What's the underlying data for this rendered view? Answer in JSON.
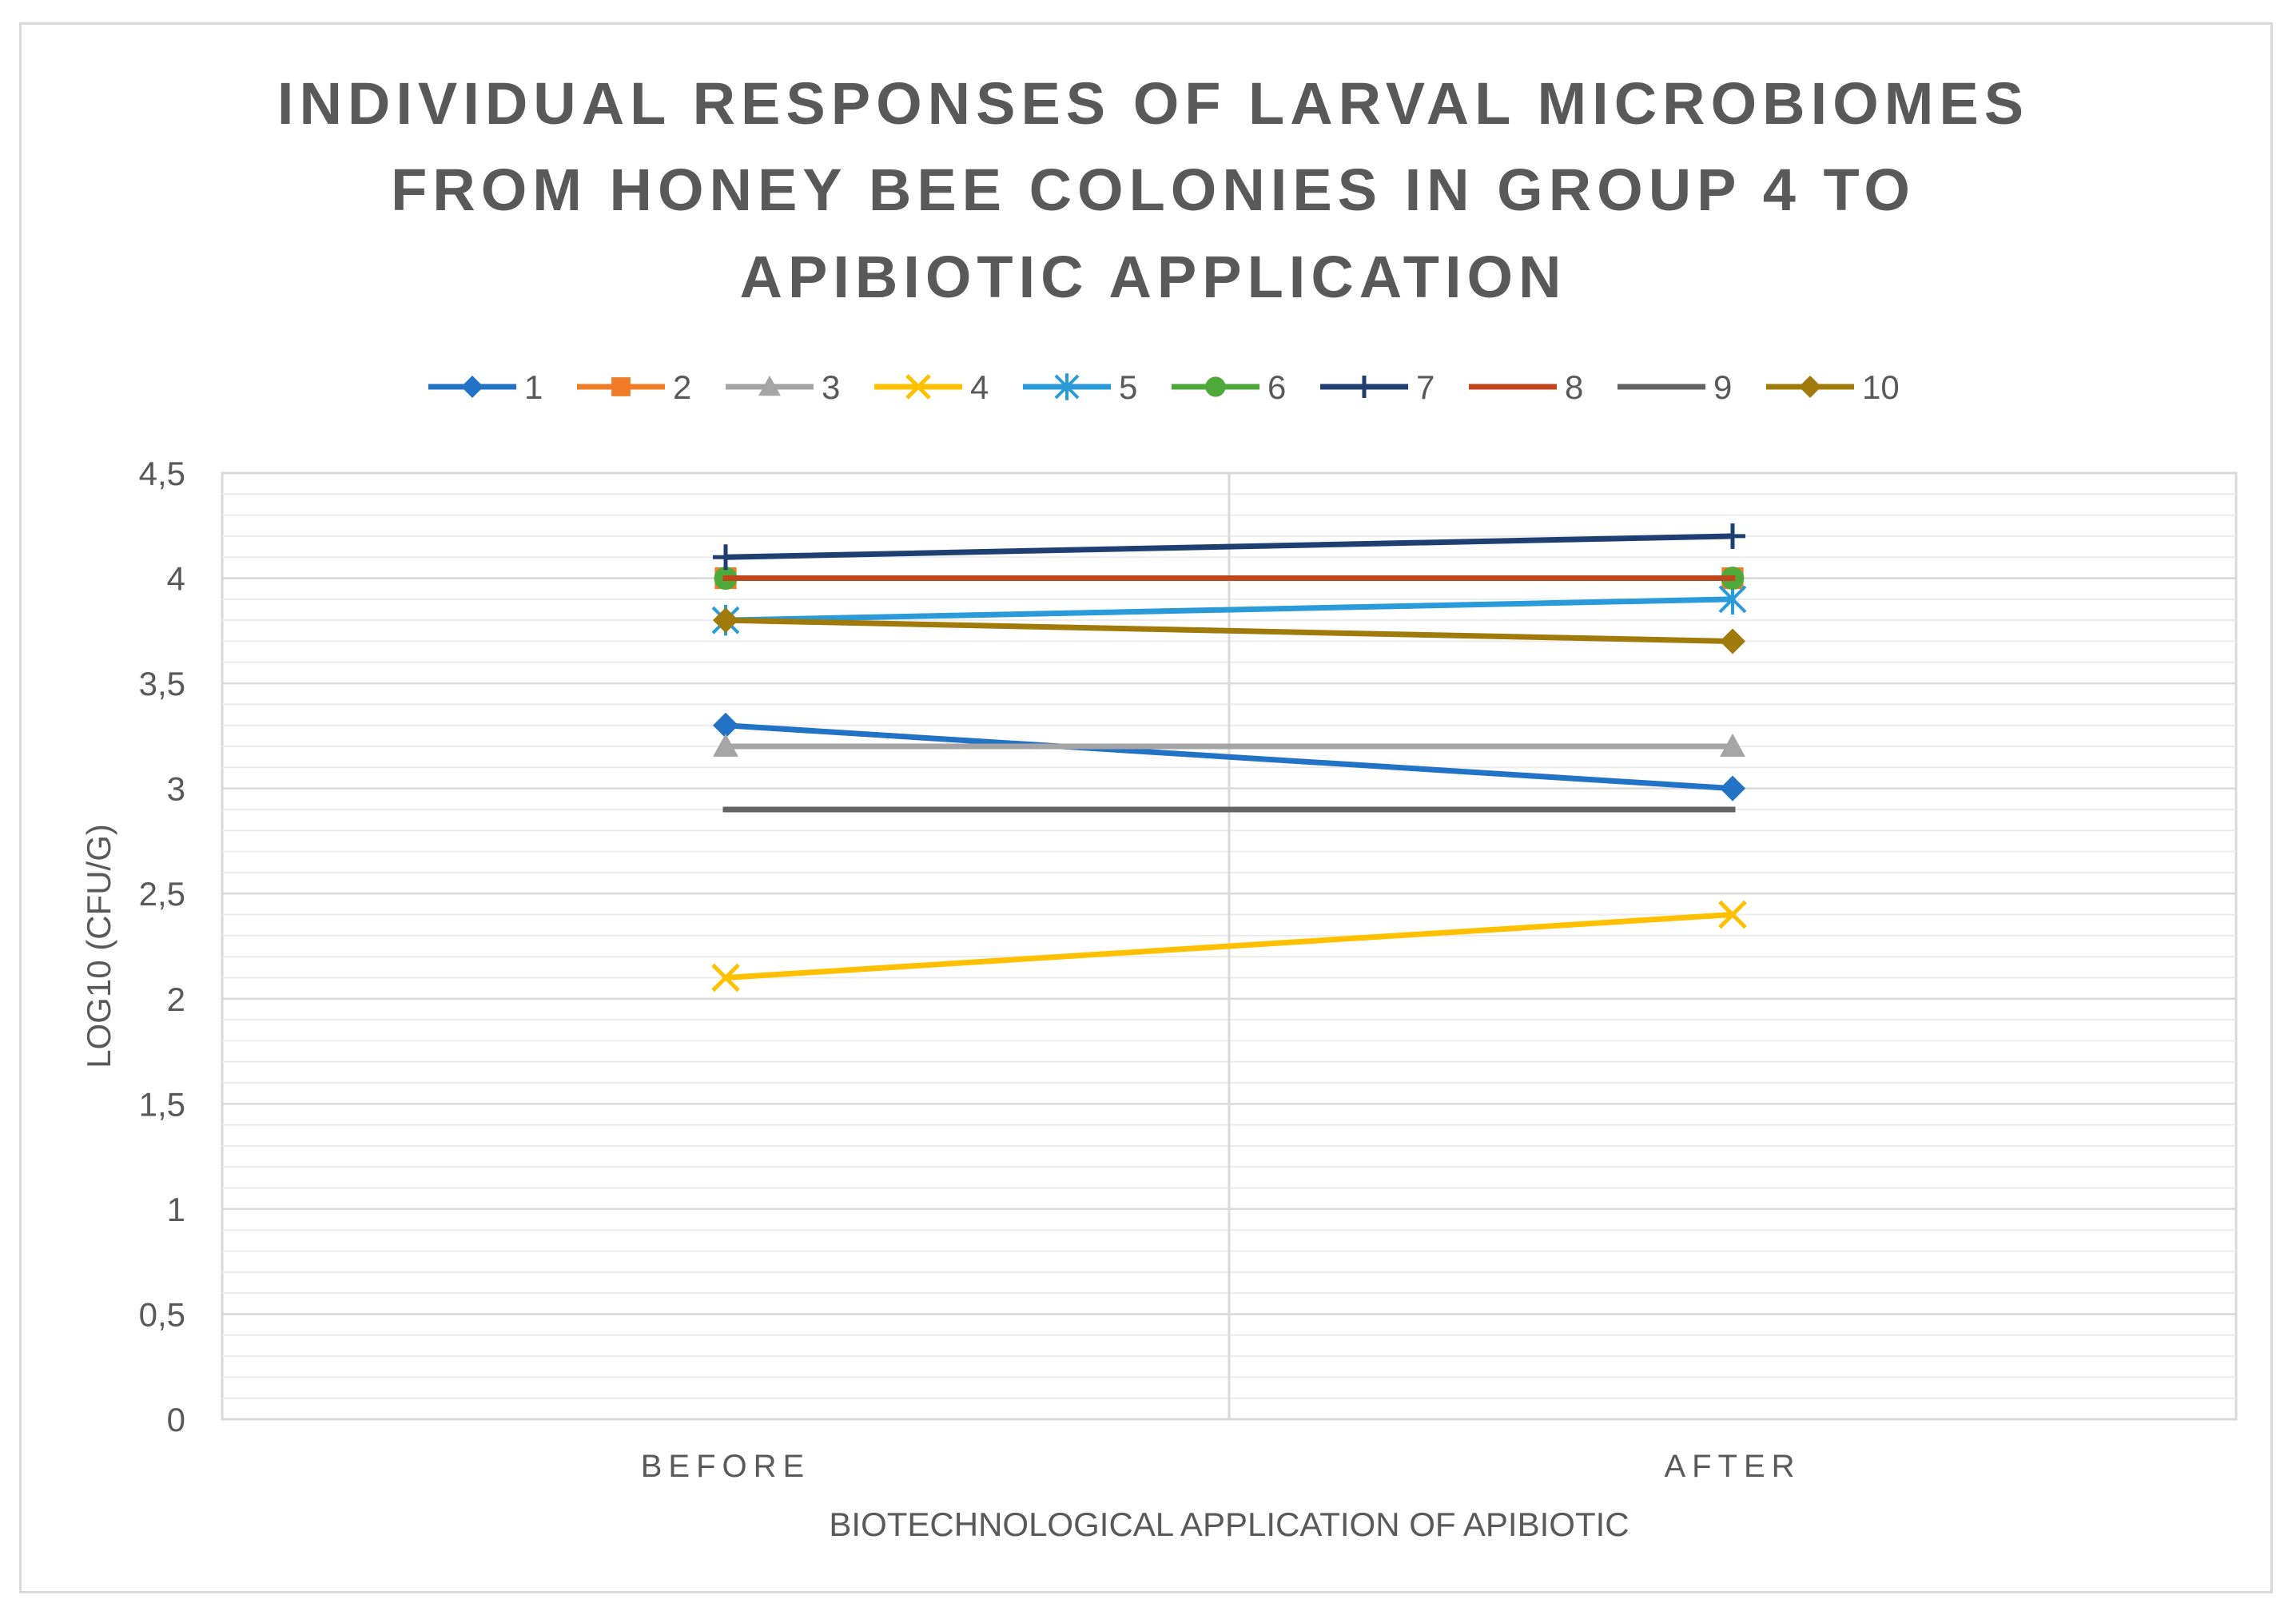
{
  "chart_data": {
    "type": "line",
    "title_lines": [
      "INDIVIDUAL RESPONSES OF LARVAL MICROBIOMES",
      "FROM HONEY BEE COLONIES IN GROUP 4 TO",
      "APIBIOTIC APPLICATION"
    ],
    "xlabel": "BIOTECHNOLOGICAL APPLICATION OF APIBIOTIC",
    "ylabel": "LOG10 (CFU/G)",
    "categories": [
      "BEFORE",
      "AFTER"
    ],
    "ylim": [
      0,
      4.5
    ],
    "yticks": [
      "0",
      "0,5",
      "1",
      "1,5",
      "2",
      "2,5",
      "3",
      "3,5",
      "4",
      "4,5"
    ],
    "grid": true,
    "legend_position": "top",
    "series": [
      {
        "name": "1",
        "values": [
          3.3,
          3.0
        ],
        "color": "#2272c6",
        "marker": "diamond"
      },
      {
        "name": "2",
        "values": [
          4.0,
          4.0
        ],
        "color": "#f07c2a",
        "marker": "square"
      },
      {
        "name": "3",
        "values": [
          3.2,
          3.2
        ],
        "color": "#a5a5a5",
        "marker": "triangle"
      },
      {
        "name": "4",
        "values": [
          2.1,
          2.4
        ],
        "color": "#ffc000",
        "marker": "x"
      },
      {
        "name": "5",
        "values": [
          3.8,
          3.9
        ],
        "color": "#2a9ad8",
        "marker": "asterisk"
      },
      {
        "name": "6",
        "values": [
          4.0,
          4.0
        ],
        "color": "#4ea83a",
        "marker": "circle"
      },
      {
        "name": "7",
        "values": [
          4.1,
          4.2
        ],
        "color": "#1f3f72",
        "marker": "plus"
      },
      {
        "name": "8",
        "values": [
          4.0,
          4.0
        ],
        "color": "#c0471c",
        "marker": "none"
      },
      {
        "name": "9",
        "values": [
          2.9,
          2.9
        ],
        "color": "#636363",
        "marker": "none"
      },
      {
        "name": "10",
        "values": [
          3.8,
          3.7
        ],
        "color": "#a07a0b",
        "marker": "diamond"
      }
    ]
  }
}
